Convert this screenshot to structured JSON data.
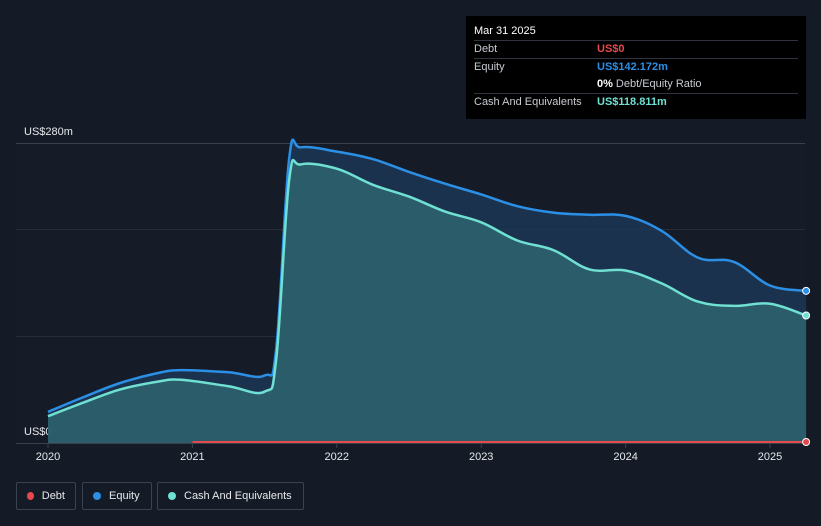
{
  "tooltip": {
    "date": "Mar 31 2025",
    "debt_label": "Debt",
    "debt_value": "US$0",
    "equity_label": "Equity",
    "equity_value": "US$142.172m",
    "ratio_value": "0%",
    "ratio_label": "Debt/Equity Ratio",
    "cash_label": "Cash And Equivalents",
    "cash_value": "US$118.811m"
  },
  "legend": {
    "debt": "Debt",
    "equity": "Equity",
    "cash": "Cash And Equivalents"
  },
  "colors": {
    "debt": "#e5484d",
    "equity": "#2b8fe6",
    "cash": "#6fe0d2",
    "background": "#151b26"
  },
  "chart_data": {
    "type": "area",
    "y_max_label": "US$280m",
    "y_min_label": "US$0",
    "ylim": [
      0,
      280
    ],
    "xlim": [
      2020,
      2025.25
    ],
    "x_ticks": [
      "2020",
      "2021",
      "2022",
      "2023",
      "2024",
      "2025"
    ],
    "grid": true,
    "series": [
      {
        "name": "Equity",
        "points": [
          [
            2020.0,
            29
          ],
          [
            2020.25,
            43
          ],
          [
            2020.5,
            56
          ],
          [
            2020.75,
            65
          ],
          [
            2020.92,
            68
          ],
          [
            2021.25,
            66
          ],
          [
            2021.5,
            63
          ],
          [
            2021.58,
            88
          ],
          [
            2021.67,
            265
          ],
          [
            2021.75,
            276
          ],
          [
            2022.0,
            272
          ],
          [
            2022.25,
            265
          ],
          [
            2022.5,
            253
          ],
          [
            2022.75,
            242
          ],
          [
            2023.0,
            232
          ],
          [
            2023.25,
            221
          ],
          [
            2023.5,
            215
          ],
          [
            2023.75,
            213
          ],
          [
            2024.0,
            212
          ],
          [
            2024.25,
            198
          ],
          [
            2024.5,
            173
          ],
          [
            2024.75,
            169
          ],
          [
            2025.0,
            147
          ],
          [
            2025.25,
            142
          ]
        ]
      },
      {
        "name": "Cash And Equivalents",
        "points": [
          [
            2020.0,
            25
          ],
          [
            2020.25,
            38
          ],
          [
            2020.5,
            50
          ],
          [
            2020.75,
            57
          ],
          [
            2020.92,
            59
          ],
          [
            2021.25,
            53
          ],
          [
            2021.5,
            48
          ],
          [
            2021.58,
            78
          ],
          [
            2021.67,
            245
          ],
          [
            2021.75,
            260
          ],
          [
            2022.0,
            256
          ],
          [
            2022.25,
            241
          ],
          [
            2022.5,
            230
          ],
          [
            2022.75,
            216
          ],
          [
            2023.0,
            206
          ],
          [
            2023.25,
            189
          ],
          [
            2023.5,
            180
          ],
          [
            2023.75,
            162
          ],
          [
            2024.0,
            161
          ],
          [
            2024.25,
            149
          ],
          [
            2024.5,
            132
          ],
          [
            2024.75,
            128
          ],
          [
            2025.0,
            130
          ],
          [
            2025.25,
            119
          ]
        ]
      },
      {
        "name": "Debt",
        "points": [
          [
            2021.0,
            0
          ],
          [
            2025.25,
            0
          ]
        ]
      }
    ]
  }
}
